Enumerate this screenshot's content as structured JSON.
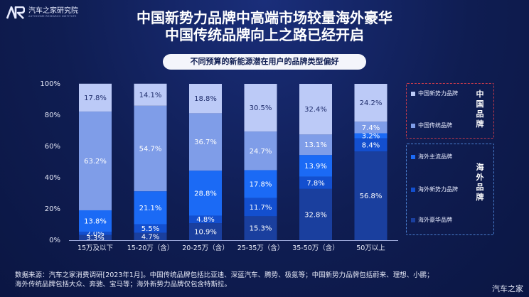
{
  "brand": {
    "name_cn": "汽车之家研究院",
    "name_en": "AUTOHOME RESEARCH INSTITUTE"
  },
  "title_line1": "中国新势力品牌中高端市场较量海外豪华",
  "title_line2": "中国传统品牌向上之路已经开启",
  "subtitle": "不同预算的新能源潜在用户的品牌类型偏好",
  "colors": {
    "china_new_force": "#bccaf7",
    "china_traditional": "#7f9de8",
    "overseas_mainstream": "#1b6af5",
    "overseas_new_force": "#134fcf",
    "overseas_luxury": "#1a3f9e"
  },
  "legend": {
    "china_group": "中国品牌",
    "overseas_group": "海外品牌",
    "items": [
      {
        "key": "china_new_force",
        "label": "中国新势力品牌"
      },
      {
        "key": "china_traditional",
        "label": "中国传统品牌"
      },
      {
        "key": "overseas_mainstream",
        "label": "海外主流品牌"
      },
      {
        "key": "overseas_new_force",
        "label": "海外新势力品牌"
      },
      {
        "key": "overseas_luxury",
        "label": "海外豪华品牌"
      }
    ]
  },
  "chart_data": {
    "type": "bar",
    "stacked": true,
    "categories": [
      "15万及以下",
      "15-20万（含）",
      "20-25万（含）",
      "25-35万（含）",
      "35-50万（含）",
      "50万以上"
    ],
    "yticks": [
      "0%",
      "20%",
      "40%",
      "60%",
      "80%",
      "100%"
    ],
    "ylim": [
      0,
      100
    ],
    "series": [
      {
        "name": "海外豪华品牌",
        "key": "overseas_luxury",
        "values": [
          3.3,
          4.7,
          10.9,
          15.3,
          32.8,
          56.8
        ],
        "labels": [
          "3.3%",
          "4.7%",
          "10.9%",
          "15.3%",
          "32.8%",
          "56.8%"
        ]
      },
      {
        "name": "海外新势力品牌",
        "key": "overseas_new_force",
        "values": [
          2.0,
          5.5,
          4.8,
          11.7,
          7.8,
          8.4
        ],
        "labels": [
          "2.0%",
          "5.5%",
          "4.8%",
          "11.7%",
          "7.8%",
          "8.4%"
        ]
      },
      {
        "name": "海外主流品牌",
        "key": "overseas_mainstream",
        "values": [
          13.8,
          21.1,
          28.8,
          17.8,
          13.9,
          3.2
        ],
        "labels": [
          "13.8%",
          "21.1%",
          "28.8%",
          "17.8%",
          "13.9%",
          "3.2%"
        ]
      },
      {
        "name": "中国传统品牌",
        "key": "china_traditional",
        "values": [
          63.2,
          54.7,
          36.7,
          24.7,
          13.1,
          7.4
        ],
        "labels": [
          "63.2%",
          "54.7%",
          "36.7%",
          "24.7%",
          "13.1%",
          "7.4%"
        ]
      },
      {
        "name": "中国新势力品牌",
        "key": "china_new_force",
        "values": [
          17.8,
          14.1,
          18.8,
          30.5,
          32.4,
          24.2
        ],
        "labels": [
          "17.8%",
          "14.1%",
          "18.8%",
          "30.5%",
          "32.4%",
          "24.2%"
        ]
      }
    ]
  },
  "source_line1": "数据来源：汽车之家消费调研[2023年1月]。中国传统品牌包括比亚迪、深蓝汽车、腾势、极氪等；中国新势力品牌包括蔚来、理想、小鹏；",
  "source_line2": "海外传统品牌包括大众、奔驰、宝马等；海外新势力品牌仅包含特斯拉。",
  "watermark": "汽车之家"
}
